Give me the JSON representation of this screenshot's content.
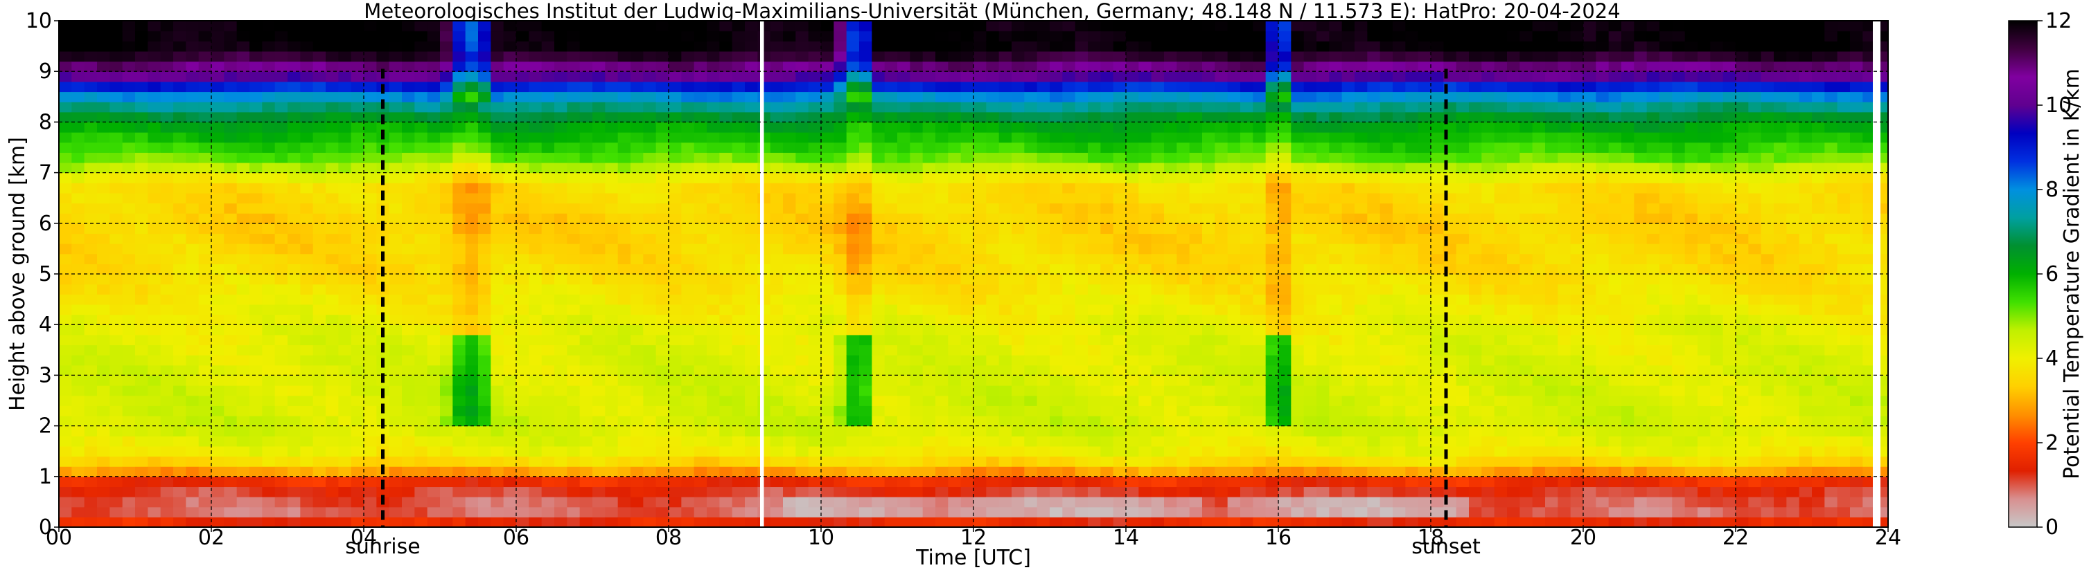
{
  "chart_data": {
    "type": "heatmap",
    "title": "Meteorologisches Institut der Ludwig-Maximilians-Universität (München, Germany; 48.148 N / 11.573 E):    HatPro: 20-04-2024",
    "xlabel": "Time [UTC]",
    "ylabel": "Height above ground [km]",
    "colorbar_label": "Potential Temperature Gradient in K/km",
    "xlim": [
      0,
      24
    ],
    "ylim": [
      0,
      10
    ],
    "clim": [
      0,
      12
    ],
    "x_ticks": [
      0,
      2,
      4,
      6,
      8,
      10,
      12,
      14,
      16,
      18,
      20,
      22,
      24
    ],
    "x_tick_labels": [
      "00",
      "02",
      "04",
      "06",
      "08",
      "10",
      "12",
      "14",
      "16",
      "18",
      "20",
      "22",
      "24"
    ],
    "y_ticks": [
      0,
      1,
      2,
      3,
      4,
      5,
      6,
      7,
      8,
      9,
      10
    ],
    "y_tick_labels": [
      "0",
      "1",
      "2",
      "3",
      "4",
      "5",
      "6",
      "7",
      "8",
      "9",
      "10"
    ],
    "colorbar_ticks": [
      0,
      2,
      4,
      6,
      8,
      10,
      12
    ],
    "colorbar_tick_labels": [
      "0",
      "2",
      "4",
      "6",
      "8",
      "10",
      "12"
    ],
    "grid": true,
    "annotations": [
      {
        "text": "sunrise",
        "x": 4.25
      },
      {
        "text": "sunset",
        "x": 18.2
      }
    ],
    "colormap": [
      "#c8c8c8",
      "#d89090",
      "#e02000",
      "#ff4000",
      "#ff9000",
      "#ffd000",
      "#f0f000",
      "#c0f000",
      "#40e000",
      "#00b000",
      "#009030",
      "#00a0a0",
      "#0090e0",
      "#0030e0",
      "#0000c0",
      "#600090",
      "#8000a0",
      "#400040",
      "#000000"
    ],
    "height_profile": [
      {
        "h": 0.0,
        "v": 3.0
      },
      {
        "h": 0.1,
        "v": 1.5
      },
      {
        "h": 0.3,
        "v": 0.9
      },
      {
        "h": 0.6,
        "v": 1.0
      },
      {
        "h": 0.9,
        "v": 1.6
      },
      {
        "h": 1.1,
        "v": 2.8
      },
      {
        "h": 1.4,
        "v": 3.9
      },
      {
        "h": 2.0,
        "v": 4.4
      },
      {
        "h": 3.0,
        "v": 4.3
      },
      {
        "h": 4.0,
        "v": 4.1
      },
      {
        "h": 5.0,
        "v": 3.6
      },
      {
        "h": 6.0,
        "v": 3.4
      },
      {
        "h": 6.8,
        "v": 3.6
      },
      {
        "h": 7.2,
        "v": 5.0
      },
      {
        "h": 7.6,
        "v": 5.7
      },
      {
        "h": 8.0,
        "v": 6.3
      },
      {
        "h": 8.3,
        "v": 7.2
      },
      {
        "h": 8.6,
        "v": 8.3
      },
      {
        "h": 8.9,
        "v": 10.0
      },
      {
        "h": 9.2,
        "v": 11.3
      },
      {
        "h": 9.5,
        "v": 12.0
      },
      {
        "h": 10.0,
        "v": 12.0
      }
    ],
    "convective_events": [
      {
        "t_start": 5.05,
        "t_end": 5.75
      },
      {
        "t_start": 10.2,
        "t_end": 10.75
      },
      {
        "t_start": 15.8,
        "t_end": 16.25
      }
    ],
    "data_gaps": [
      {
        "t_start": 9.2,
        "t_end": 9.25
      },
      {
        "t_start": 23.8,
        "t_end": 23.9
      }
    ]
  }
}
